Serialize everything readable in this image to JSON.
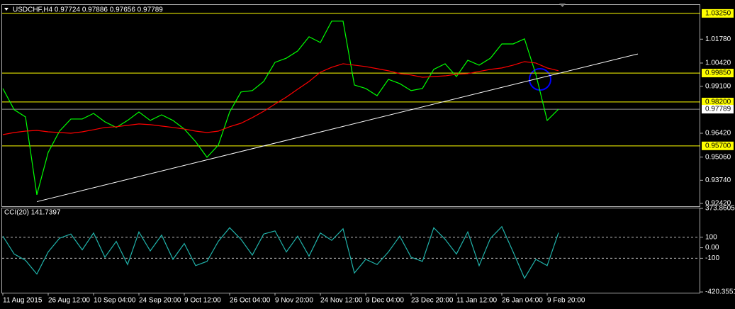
{
  "chart_data": [
    {
      "type": "line",
      "title": "USDCHF,H4  0.97724 0.97886 0.97656 0.97789",
      "categories": [
        "11 Aug 2015",
        null,
        null,
        null,
        "26 Aug 12:00",
        null,
        null,
        null,
        "10 Sep 04:00",
        null,
        null,
        null,
        "24 Sep 20:00",
        null,
        null,
        null,
        "9 Oct 12:00",
        null,
        null,
        null,
        "26 Oct 04:00",
        null,
        null,
        null,
        "9 Nov 20:00",
        null,
        null,
        null,
        "24 Nov 12:00",
        null,
        null,
        null,
        "9 Dec 04:00",
        null,
        null,
        null,
        "23 Dec 20:00",
        null,
        null,
        null,
        "11 Jan 12:00",
        null,
        null,
        null,
        "26 Jan 04:00",
        null,
        null,
        null,
        "9 Feb 20:00",
        null,
        null,
        null,
        null,
        null,
        null,
        null,
        null,
        null,
        null,
        null,
        null,
        null
      ],
      "series": [
        {
          "color": "#00ff00",
          "values": [
            0.9897,
            0.9776,
            0.9735,
            0.9291,
            0.9533,
            0.9654,
            0.9723,
            0.9723,
            0.9755,
            0.9707,
            0.9675,
            0.9715,
            0.9763,
            0.9715,
            0.9747,
            0.9715,
            0.9666,
            0.9594,
            0.9505,
            0.9574,
            0.9763,
            0.9877,
            0.9885,
            0.9937,
            1.0046,
            1.007,
            1.0111,
            1.0192,
            1.0159,
            1.0281,
            1.0281,
            0.9917,
            0.9897,
            0.9856,
            0.9949,
            0.9925,
            0.9885,
            0.9897,
            1.0006,
            1.0038,
            0.9965,
            1.0058,
            1.003,
            1.007,
            1.0151,
            1.0151,
            1.018,
            0.9978,
            0.9715,
            0.97789,
            null,
            null,
            null,
            null,
            null,
            null,
            null,
            null,
            null,
            null,
            null,
            null
          ]
        },
        {
          "color": "#ff0000",
          "values": [
            0.9634,
            0.9646,
            0.9654,
            0.9658,
            0.965,
            0.9646,
            0.9642,
            0.965,
            0.9662,
            0.9675,
            0.9679,
            0.9687,
            0.9695,
            0.9691,
            0.9683,
            0.9675,
            0.9666,
            0.9654,
            0.9646,
            0.9654,
            0.9679,
            0.9699,
            0.9731,
            0.9767,
            0.9808,
            0.9848,
            0.9893,
            0.9937,
            0.999,
            1.0018,
            1.0038,
            1.003,
            1.0022,
            1.001,
            0.9998,
            0.9982,
            0.9974,
            0.9961,
            0.9965,
            0.9969,
            0.9978,
            0.9982,
            0.9994,
            1.0006,
            1.0014,
            1.003,
            1.005,
            1.0042,
            1.0014,
            0.9998,
            null,
            null,
            null,
            null,
            null,
            null,
            null,
            null,
            null,
            null,
            null,
            null
          ]
        }
      ],
      "ylim": [
        0.923,
        1.0369
      ],
      "yticks": [
        {
          "value": 1.0178,
          "label": "1.01780"
        },
        {
          "value": 1.0042,
          "label": "1.00420"
        },
        {
          "value": 0.991,
          "label": "0.99100"
        },
        {
          "value": 0.9642,
          "label": "0.96420"
        },
        {
          "value": 0.9506,
          "label": "0.95060"
        },
        {
          "value": 0.9374,
          "label": "0.93740"
        },
        {
          "value": 0.9242,
          "label": "0.92420"
        }
      ],
      "levels": [
        {
          "value": 1.0325,
          "label": "1.03250"
        },
        {
          "value": 0.9985,
          "label": "0.99850"
        },
        {
          "value": 0.982,
          "label": "0.98200"
        },
        {
          "value": 0.957,
          "label": "0.95700"
        }
      ],
      "level_color": "#ffff00",
      "bid": {
        "value": 0.97789,
        "label": "0.97789"
      },
      "trendline": {
        "color": "#ffffff",
        "from": {
          "category": 3,
          "value": 0.9252
        },
        "to": {
          "category": 56,
          "value": 1.0094
        }
      }
    },
    {
      "type": "line",
      "title": "CCI(20) 141.7397",
      "series": [
        {
          "color": "#20b2aa",
          "values": [
            110,
            -60,
            -120,
            -250,
            -40,
            90,
            130,
            -20,
            140,
            -90,
            60,
            -160,
            150,
            -30,
            120,
            -110,
            40,
            -170,
            -130,
            60,
            190,
            80,
            -70,
            130,
            160,
            -40,
            110,
            -80,
            140,
            70,
            180,
            -240,
            -110,
            -160,
            -40,
            110,
            -90,
            -130,
            190,
            80,
            -60,
            150,
            -170,
            90,
            200,
            -40,
            -290,
            -110,
            -170,
            141.7397,
            null,
            null,
            null,
            null,
            null,
            null,
            null,
            null,
            null,
            null,
            null,
            null
          ]
        }
      ],
      "ylim": [
        -420.3551,
        373.8605
      ],
      "yticks": [
        373.8605,
        100,
        {
          "value": 0,
          "label": "0.00"
        },
        -100,
        -420.3551
      ],
      "levels": [
        100,
        -100
      ]
    }
  ]
}
